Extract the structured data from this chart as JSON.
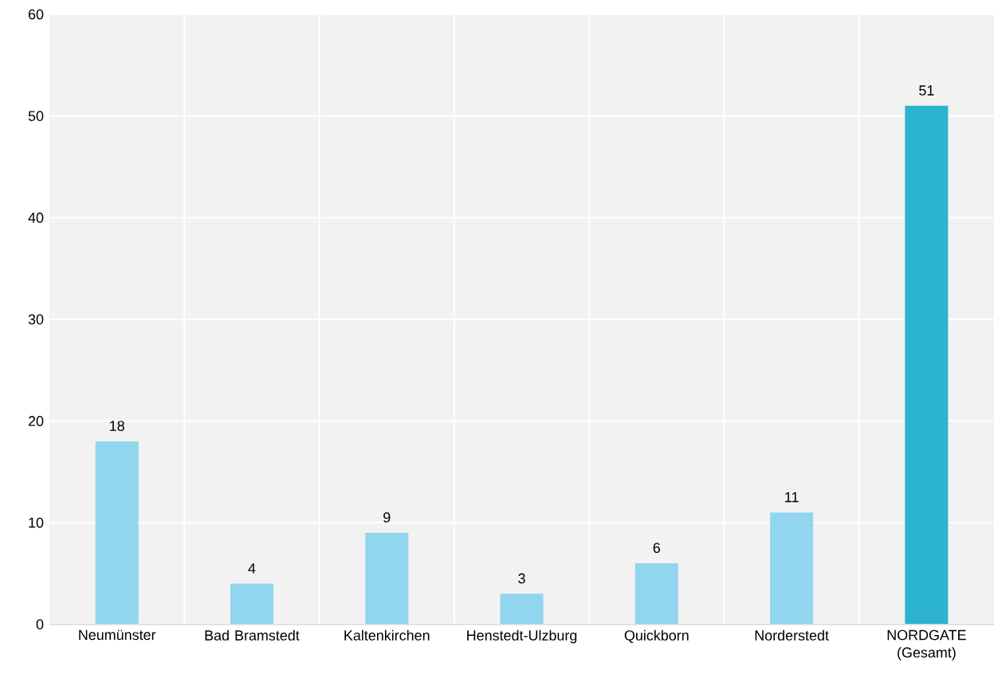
{
  "chart_data": {
    "type": "bar",
    "categories": [
      "Neumünster",
      "Bad Bramstedt",
      "Kaltenkirchen",
      "Henstedt-Ulzburg",
      "Quickborn",
      "Norderstedt",
      "NORDGATE (Gesamt)"
    ],
    "values": [
      18,
      4,
      9,
      3,
      6,
      11,
      51
    ],
    "colors": [
      "#92d5ee",
      "#92d5ee",
      "#92d5ee",
      "#92d5ee",
      "#92d5ee",
      "#92d5ee",
      "#2bb3d0"
    ],
    "ylim": [
      0,
      60
    ],
    "yticks": [
      0,
      10,
      20,
      30,
      40,
      50,
      60
    ],
    "grid": true,
    "data_labels": true
  }
}
